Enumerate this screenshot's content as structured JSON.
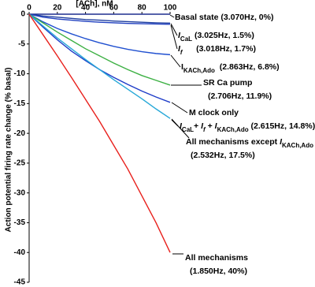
{
  "chart_data": {
    "type": "line",
    "x_label": "[ACh], nM",
    "y_label": "Action potential firing rate change (% basal)",
    "x": [
      0,
      10,
      20,
      30,
      40,
      50,
      60,
      70,
      80,
      90,
      100
    ],
    "xlim": [
      0,
      100
    ],
    "xticks": [
      0,
      20,
      40,
      60,
      80,
      100
    ],
    "ylim": [
      -45,
      0
    ],
    "yticks": [
      0,
      -5,
      -10,
      -15,
      -20,
      -25,
      -30,
      -35,
      -40,
      -45
    ],
    "series": [
      {
        "name": "Basal state",
        "color": "#1f2f8f",
        "values": [
          0,
          0,
          0,
          0,
          0,
          0,
          0,
          0,
          0,
          0,
          0
        ]
      },
      {
        "name": "ICaL",
        "color": "#1f3fa0",
        "values": [
          0,
          -0.3,
          -0.5,
          -0.7,
          -0.9,
          -1,
          -1.15,
          -1.25,
          -1.35,
          -1.45,
          -1.5
        ]
      },
      {
        "name": "If",
        "color": "#2040c0",
        "values": [
          0,
          -0.5,
          -0.8,
          -1,
          -1.2,
          -1.35,
          -1.45,
          -1.55,
          -1.6,
          -1.65,
          -1.7
        ]
      },
      {
        "name": "IKACh,Ado",
        "color": "#2050d0",
        "values": [
          0,
          -1.3,
          -2.4,
          -3.3,
          -4.1,
          -4.8,
          -5.4,
          -5.9,
          -6.3,
          -6.6,
          -6.8
        ]
      },
      {
        "name": "SR Ca pump",
        "color": "#3cb043",
        "values": [
          0,
          -1.5,
          -3,
          -4.4,
          -5.8,
          -7,
          -8.2,
          -9.3,
          -10.3,
          -11.1,
          -11.9
        ]
      },
      {
        "name": "M clock only",
        "color": "#1e3cc8",
        "values": [
          0,
          -2.2,
          -4.3,
          -6.2,
          -7.8,
          -9.3,
          -10.6,
          -11.8,
          -12.9,
          -13.9,
          -14.8
        ]
      },
      {
        "name": "All mechanisms except IKACh,Ado",
        "color": "#27a8d8",
        "values": [
          0,
          -2,
          -4,
          -5.8,
          -7.6,
          -9.3,
          -11,
          -12.6,
          -14.2,
          -15.9,
          -17.5
        ]
      },
      {
        "name": "All mechanisms",
        "color": "#e8201c",
        "values": [
          0,
          -3.5,
          -7,
          -10.6,
          -14.3,
          -18,
          -22,
          -26,
          -30.5,
          -35,
          -40
        ]
      }
    ],
    "annotations": [
      [
        [
          {
            "text": "Basal state (3.070Hz, 0%)"
          }
        ]
      ],
      [
        [
          {
            "text": "I",
            "italic": true
          },
          {
            "text": "CaL",
            "sub": true
          },
          {
            "text": " (3.025Hz, 1.5%)"
          }
        ]
      ],
      [
        [
          {
            "text": "I",
            "italic": true
          },
          {
            "text": "f",
            "italic": true,
            "sub": true
          },
          {
            "text": "      (3.018Hz, 1.7%)"
          }
        ]
      ],
      [
        [
          {
            "text": "I"
          },
          {
            "text": "KACh,Ado",
            "sub": true
          },
          {
            "text": "  (2.863Hz, 6.8%)"
          }
        ]
      ],
      [
        [
          {
            "text": "SR Ca pump"
          }
        ],
        [
          {
            "text": "(2.706Hz, 11.9%)"
          }
        ]
      ],
      [
        [
          {
            "text": "M clock only"
          }
        ]
      ],
      [
        [
          {
            "text": "I",
            "italic": true
          },
          {
            "text": "CaL",
            "sub": true
          },
          {
            "text": "+ "
          },
          {
            "text": "I",
            "italic": true
          },
          {
            "text": "f",
            "italic": true,
            "sub": true
          },
          {
            "text": " + "
          },
          {
            "text": "I",
            "italic": true
          },
          {
            "text": "KACh,Ado",
            "sub": true
          },
          {
            "text": " (2.615Hz, 14.8%)"
          }
        ]
      ],
      [
        [
          {
            "text": "All mechanisms except "
          },
          {
            "text": "I",
            "italic": true
          },
          {
            "text": "KACh,Ado",
            "sub": true
          }
        ],
        [
          {
            "text": "(2.532Hz, 17.5%)"
          }
        ]
      ],
      [
        [
          {
            "text": "All mechanisms"
          }
        ],
        [
          {
            "text": "(1.850Hz, 40%)"
          }
        ]
      ]
    ]
  }
}
